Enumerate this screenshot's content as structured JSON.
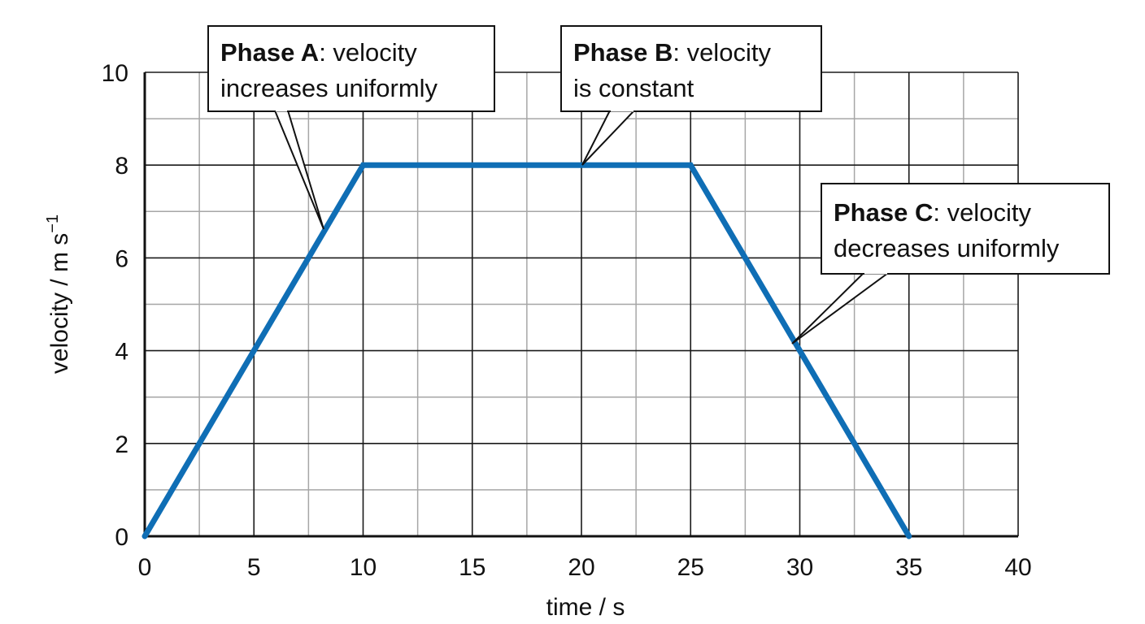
{
  "chart_data": {
    "type": "line",
    "xlabel": "time / s",
    "ylabel": "velocity / m s",
    "ylabel_unit_exponent": "−1",
    "xlim": [
      0,
      40
    ],
    "ylim": [
      0,
      10
    ],
    "x_ticks": [
      "0",
      "5",
      "10",
      "15",
      "20",
      "25",
      "30",
      "35",
      "40"
    ],
    "y_ticks": [
      "0",
      "2",
      "4",
      "6",
      "8",
      "10"
    ],
    "grid": true,
    "grid_minor": true,
    "colors": {
      "line": "#0f6eb5",
      "grid_major": "#1a1a1a",
      "grid_minor": "#a6a6a6"
    },
    "series": [
      {
        "x": [
          0,
          10,
          25,
          35
        ],
        "y": [
          0,
          8,
          8,
          0
        ]
      }
    ],
    "annotations": [
      {
        "id": "phase-a",
        "bold": "Phase A",
        "lines": [
          ": velocity",
          "increases uniformly"
        ],
        "points_to": {
          "x": 8.2,
          "y": 6.6
        }
      },
      {
        "id": "phase-b",
        "bold": "Phase B",
        "lines": [
          ": velocity",
          "is constant"
        ],
        "points_to": {
          "x": 20,
          "y": 8
        }
      },
      {
        "id": "phase-c",
        "bold": "Phase C",
        "lines": [
          ": velocity",
          "decreases uniformly"
        ],
        "points_to": {
          "x": 29.8,
          "y": 4.1
        }
      }
    ]
  }
}
